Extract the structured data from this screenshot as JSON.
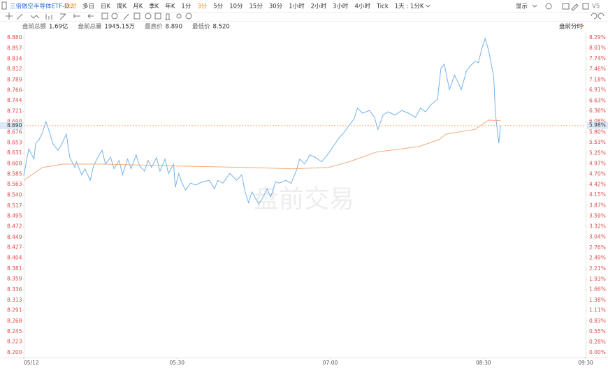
{
  "toolbar": {
    "symbol": "三倍做空半导体ETF-D...",
    "periods": [
      "分时",
      "多日",
      "日K",
      "周K",
      "月K",
      "季K",
      "年K",
      "1分",
      "3分",
      "5分",
      "10分",
      "15分",
      "30分",
      "1小时",
      "2小时",
      "3小时",
      "4小时",
      "Tick",
      "1天 : 1分K"
    ],
    "active_periods": [
      0,
      8
    ],
    "display": "显示",
    "version": "V5"
  },
  "info": [
    {
      "label": "盘前总额",
      "value": "1.69亿"
    },
    {
      "label": "盘前总量",
      "value": "1945.15万"
    },
    {
      "label": "最高价",
      "value": "8.890"
    },
    {
      "label": "最低价",
      "value": "8.520"
    }
  ],
  "panel_label": "盘前分时",
  "chart_data": {
    "type": "line",
    "watermark": "盘前交易",
    "xlim": [
      0,
      330
    ],
    "xticks": [
      {
        "value": 0,
        "label": "05/12"
      },
      {
        "value": 90,
        "label": "05:30"
      },
      {
        "value": 180,
        "label": "07:00"
      },
      {
        "value": 270,
        "label": "08:30"
      },
      {
        "value": 330,
        "label": "09:30"
      }
    ],
    "ylim": [
      8.2,
      8.88
    ],
    "yticks": [
      {
        "value": 8.88,
        "label": "8.880"
      },
      8.857,
      8.834,
      8.812,
      8.789,
      8.766,
      8.744,
      8.721,
      8.698,
      8.676,
      8.653,
      8.631,
      8.608,
      8.585,
      8.563,
      {
        "value": 8.54,
        "label": "8.540"
      },
      8.517,
      8.495,
      8.472,
      8.449,
      8.427,
      8.404,
      8.381,
      8.359,
      8.336,
      8.313,
      8.291,
      8.268,
      8.245,
      8.223,
      {
        "value": 8.2,
        "label": "8.200"
      }
    ],
    "y2lim": [
      0,
      8.29
    ],
    "y2ticks": [
      {
        "value": 8.29,
        "label": "8.29%"
      },
      {
        "value": 8.01,
        "label": "8.01%"
      },
      {
        "value": 7.74,
        "label": "7.74%"
      },
      {
        "value": 7.46,
        "label": "7.46%"
      },
      {
        "value": 7.18,
        "label": "7.18%"
      },
      {
        "value": 6.91,
        "label": "6.91%"
      },
      {
        "value": 6.63,
        "label": "6.63%"
      },
      {
        "value": 6.36,
        "label": "6.36%"
      },
      {
        "value": 6.08,
        "label": "6.08%"
      },
      {
        "value": 5.8,
        "label": "5.80%"
      },
      {
        "value": 5.53,
        "label": "5.53%"
      },
      {
        "value": 5.25,
        "label": "5.25%"
      },
      {
        "value": 4.97,
        "label": "4.97%"
      },
      {
        "value": 4.7,
        "label": "4.70%"
      },
      {
        "value": 4.42,
        "label": "4.42%"
      },
      {
        "value": 4.15,
        "label": "4.15%"
      },
      {
        "value": 3.87,
        "label": "3.87%"
      },
      {
        "value": 3.59,
        "label": "3.59%"
      },
      {
        "value": 3.32,
        "label": "3.32%"
      },
      {
        "value": 3.04,
        "label": "3.04%"
      },
      {
        "value": 2.76,
        "label": "2.76%"
      },
      {
        "value": 2.49,
        "label": "2.49%"
      },
      {
        "value": 2.21,
        "label": "2.21%"
      },
      {
        "value": 1.93,
        "label": "1.93%"
      },
      {
        "value": 1.66,
        "label": "1.66%"
      },
      {
        "value": 1.38,
        "label": "1.38%"
      },
      {
        "value": 1.11,
        "label": "1.11%"
      },
      {
        "value": 0.83,
        "label": "0.83%"
      },
      {
        "value": 0.55,
        "label": "0.55%"
      },
      {
        "value": 0.28,
        "label": "0.28%"
      },
      {
        "value": 0,
        "label": "0.00%"
      }
    ],
    "last_price": {
      "value": 8.69,
      "label": "8.690"
    },
    "last_change": {
      "value": 5.98,
      "label": "5.98%"
    },
    "series": [
      {
        "color": "#74b3ea",
        "x": [
          0,
          2,
          3,
          6,
          7,
          9,
          11,
          13,
          15,
          17,
          20,
          22,
          25,
          27,
          30,
          31,
          34,
          36,
          39,
          41,
          43,
          46,
          48,
          51,
          53,
          56,
          58,
          61,
          63,
          66,
          68,
          71,
          73,
          75,
          78,
          80,
          83,
          85,
          88,
          89,
          91,
          93,
          95,
          98,
          101,
          105,
          109,
          112,
          114,
          117,
          121,
          125,
          128,
          130,
          132,
          134,
          138,
          140,
          143,
          145,
          148,
          150,
          154,
          157,
          160,
          162,
          165,
          168,
          171,
          175,
          179,
          183,
          185,
          188,
          191,
          194,
          196,
          199,
          203,
          206,
          208,
          211,
          214,
          218,
          222,
          226,
          230,
          233,
          236,
          239,
          243,
          245,
          247,
          250,
          253,
          255,
          257,
          260,
          262,
          265,
          267,
          269,
          271,
          273,
          276,
          277,
          279,
          280
        ],
        "values": [
          8.581,
          8.622,
          8.64,
          8.618,
          8.652,
          8.66,
          8.675,
          8.699,
          8.678,
          8.652,
          8.637,
          8.648,
          8.672,
          8.622,
          8.6,
          8.612,
          8.584,
          8.597,
          8.572,
          8.603,
          8.618,
          8.637,
          8.607,
          8.622,
          8.597,
          8.615,
          8.584,
          8.618,
          8.597,
          8.627,
          8.603,
          8.592,
          8.615,
          8.6,
          8.621,
          8.592,
          8.618,
          8.587,
          8.607,
          8.557,
          8.587,
          8.566,
          8.551,
          8.566,
          8.562,
          8.569,
          8.572,
          8.554,
          8.572,
          8.566,
          8.587,
          8.572,
          8.584,
          8.547,
          8.524,
          8.547,
          8.521,
          8.532,
          8.554,
          8.536,
          8.569,
          8.566,
          8.572,
          8.566,
          8.592,
          8.618,
          8.607,
          8.627,
          8.622,
          8.612,
          8.63,
          8.652,
          8.663,
          8.675,
          8.69,
          8.705,
          8.728,
          8.717,
          8.723,
          8.708,
          8.682,
          8.713,
          8.72,
          8.713,
          8.723,
          8.717,
          8.708,
          8.728,
          8.72,
          8.735,
          8.747,
          8.814,
          8.823,
          8.768,
          8.799,
          8.784,
          8.768,
          8.808,
          8.818,
          8.829,
          8.826,
          8.856,
          8.878,
          8.853,
          8.796,
          8.717,
          8.652,
          8.69
        ]
      },
      {
        "color": "#f4aa7c",
        "x": [
          0,
          11,
          23,
          48,
          89,
          130,
          158,
          179,
          191,
          207,
          232,
          244,
          248,
          265,
          273,
          280
        ],
        "values": [
          8.572,
          8.6,
          8.607,
          8.607,
          8.603,
          8.6,
          8.597,
          8.6,
          8.612,
          8.633,
          8.645,
          8.66,
          8.672,
          8.682,
          8.702,
          8.701
        ]
      }
    ]
  }
}
